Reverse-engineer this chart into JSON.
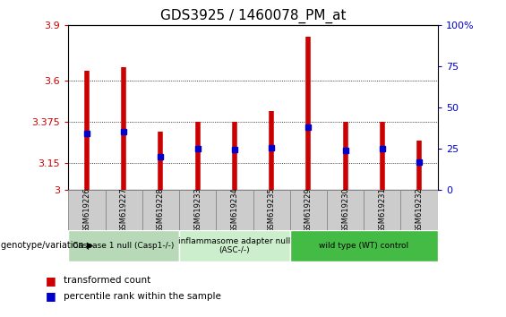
{
  "title": "GDS3925 / 1460078_PM_at",
  "samples": [
    "GSM619226",
    "GSM619227",
    "GSM619228",
    "GSM619233",
    "GSM619234",
    "GSM619235",
    "GSM619229",
    "GSM619230",
    "GSM619231",
    "GSM619232"
  ],
  "bar_values": [
    3.65,
    3.67,
    3.32,
    3.375,
    3.375,
    3.43,
    3.84,
    3.375,
    3.375,
    3.27
  ],
  "percentile_values": [
    3.31,
    3.32,
    3.185,
    3.225,
    3.22,
    3.23,
    3.345,
    3.215,
    3.225,
    3.155
  ],
  "ylim": [
    3.0,
    3.9
  ],
  "yticks": [
    3.0,
    3.15,
    3.375,
    3.6,
    3.9
  ],
  "ytick_labels": [
    "3",
    "3.15",
    "3.375",
    "3.6",
    "3.9"
  ],
  "right_yticks": [
    0,
    25,
    50,
    75,
    100
  ],
  "right_ytick_labels": [
    "0",
    "25",
    "50",
    "75",
    "100%"
  ],
  "bar_color": "#cc0000",
  "percentile_color": "#0000cc",
  "groups": [
    {
      "label": "Caspase 1 null (Casp1-/-)",
      "start": 0,
      "end": 3,
      "color": "#b8d9b8"
    },
    {
      "label": "inflammasome adapter null\n(ASC-/-)",
      "start": 3,
      "end": 6,
      "color": "#cceecc"
    },
    {
      "label": "wild type (WT) control",
      "start": 6,
      "end": 10,
      "color": "#44bb44"
    }
  ],
  "left_label_color": "#cc0000",
  "right_label_color": "#0000cc",
  "tick_label_fontsize": 8,
  "title_fontsize": 11,
  "sample_box_color": "#cccccc",
  "sample_box_edge": "#888888"
}
